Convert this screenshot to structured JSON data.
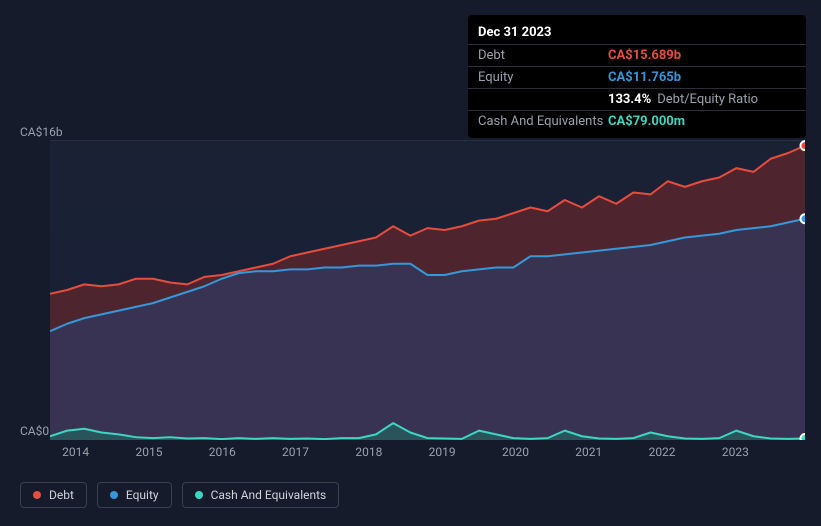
{
  "chart": {
    "type": "area",
    "background_color": "#151b2a",
    "plot_background_gradient": [
      "#1a2133",
      "#17203a"
    ],
    "y_axis": {
      "top_label": "CA$16b",
      "bottom_label": "CA$0",
      "min": 0,
      "max": 16,
      "label_color": "#9aa0ad",
      "label_fontsize": 12
    },
    "x_axis": {
      "labels": [
        "2014",
        "2015",
        "2016",
        "2017",
        "2018",
        "2019",
        "2020",
        "2021",
        "2022",
        "2023"
      ],
      "label_color": "#9aa0ad",
      "label_fontsize": 12
    },
    "grid_line_color": "#2a3040",
    "series": [
      {
        "name": "Debt",
        "color": "#e74c3c",
        "fill_color": "#7a2a2a",
        "fill_opacity": 0.55,
        "line_width": 2,
        "values": [
          7.8,
          8.0,
          8.3,
          8.2,
          8.3,
          8.6,
          8.6,
          8.4,
          8.3,
          8.7,
          8.8,
          9.0,
          9.2,
          9.4,
          9.8,
          10.0,
          10.2,
          10.4,
          10.6,
          10.8,
          11.4,
          10.9,
          11.3,
          11.2,
          11.4,
          11.7,
          11.8,
          12.1,
          12.4,
          12.2,
          12.8,
          12.4,
          13.0,
          12.6,
          13.2,
          13.1,
          13.8,
          13.5,
          13.8,
          14.0,
          14.5,
          14.3,
          15.0,
          15.3,
          15.7
        ]
      },
      {
        "name": "Equity",
        "color": "#3498db",
        "fill_color": "#2c3e6b",
        "fill_opacity": 0.6,
        "line_width": 2,
        "values": [
          5.8,
          6.2,
          6.5,
          6.7,
          6.9,
          7.1,
          7.3,
          7.6,
          7.9,
          8.2,
          8.6,
          8.9,
          9.0,
          9.0,
          9.1,
          9.1,
          9.2,
          9.2,
          9.3,
          9.3,
          9.4,
          9.4,
          8.8,
          8.8,
          9.0,
          9.1,
          9.2,
          9.2,
          9.8,
          9.8,
          9.9,
          10.0,
          10.1,
          10.2,
          10.3,
          10.4,
          10.6,
          10.8,
          10.9,
          11.0,
          11.2,
          11.3,
          11.4,
          11.6,
          11.8
        ]
      },
      {
        "name": "Cash And Equivalents",
        "color": "#3dd6c0",
        "fill_color": "#1f6a60",
        "fill_opacity": 0.6,
        "line_width": 2,
        "values": [
          0.2,
          0.5,
          0.6,
          0.4,
          0.3,
          0.15,
          0.1,
          0.15,
          0.08,
          0.1,
          0.05,
          0.1,
          0.06,
          0.1,
          0.06,
          0.08,
          0.05,
          0.1,
          0.1,
          0.3,
          0.9,
          0.4,
          0.1,
          0.08,
          0.06,
          0.5,
          0.3,
          0.1,
          0.06,
          0.1,
          0.5,
          0.2,
          0.08,
          0.06,
          0.1,
          0.4,
          0.2,
          0.08,
          0.06,
          0.1,
          0.5,
          0.2,
          0.08,
          0.06,
          0.08
        ]
      }
    ],
    "markers": [
      {
        "series": "Debt",
        "point_index": 44,
        "color": "#e74c3c"
      },
      {
        "series": "Equity",
        "point_index": 44,
        "color": "#3498db"
      },
      {
        "series": "Cash And Equivalents",
        "point_index": 44,
        "color": "#3dd6c0"
      }
    ]
  },
  "tooltip": {
    "date": "Dec 31 2023",
    "rows": [
      {
        "label": "Debt",
        "value": "CA$15.689b",
        "color": "#e74c3c"
      },
      {
        "label": "Equity",
        "value": "CA$11.765b",
        "color": "#3498db"
      },
      {
        "label": "",
        "value": "133.4%",
        "color": "#ffffff",
        "extra": "Debt/Equity Ratio"
      },
      {
        "label": "Cash And Equivalents",
        "value": "CA$79.000m",
        "color": "#3dd6c0"
      }
    ]
  },
  "legend": {
    "items": [
      {
        "label": "Debt",
        "color": "#e74c3c"
      },
      {
        "label": "Equity",
        "color": "#3498db"
      },
      {
        "label": "Cash And Equivalents",
        "color": "#3dd6c0"
      }
    ],
    "border_color": "#3a4050",
    "text_color": "#cfd3dc",
    "fontsize": 12
  }
}
